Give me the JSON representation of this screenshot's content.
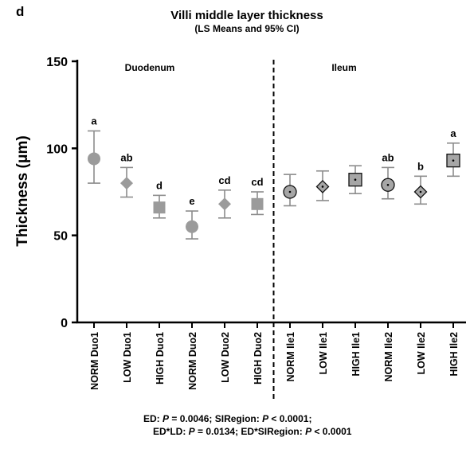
{
  "chart_data": {
    "type": "scatter",
    "panel_label": "d",
    "title": "Villi middle layer thickness",
    "subtitle": "(LS Means and 95% CI)",
    "ylabel": "Thickness (μm)",
    "ylim": [
      0,
      150
    ],
    "yticks": [
      0,
      50,
      100,
      150
    ],
    "regions": [
      {
        "name": "Duodenum"
      },
      {
        "name": "Ileum"
      }
    ],
    "categories": [
      "NORM Duo1",
      "LOW Duo1",
      "HIGH Duo1",
      "NORM Duo2",
      "LOW Duo2",
      "HIGH Duo2",
      "NORM Ile1",
      "LOW Ile1",
      "HIGH Ile1",
      "NORM Ile2",
      "LOW Ile2",
      "HIGH Ile2"
    ],
    "points": [
      {
        "category": "NORM Duo1",
        "mean": 94,
        "ci_low": 80,
        "ci_high": 110,
        "letter": "a",
        "marker": "circle",
        "region": "duodenum"
      },
      {
        "category": "LOW Duo1",
        "mean": 80,
        "ci_low": 72,
        "ci_high": 89,
        "letter": "ab",
        "marker": "diamond",
        "region": "duodenum"
      },
      {
        "category": "HIGH Duo1",
        "mean": 66,
        "ci_low": 60,
        "ci_high": 73,
        "letter": "d",
        "marker": "square",
        "region": "duodenum"
      },
      {
        "category": "NORM Duo2",
        "mean": 55,
        "ci_low": 48,
        "ci_high": 64,
        "letter": "e",
        "marker": "circle",
        "region": "duodenum"
      },
      {
        "category": "LOW Duo2",
        "mean": 68,
        "ci_low": 60,
        "ci_high": 76,
        "letter": "cd",
        "marker": "diamond",
        "region": "duodenum"
      },
      {
        "category": "HIGH Duo2",
        "mean": 68,
        "ci_low": 62,
        "ci_high": 75,
        "letter": "cd",
        "marker": "square",
        "region": "duodenum"
      },
      {
        "category": "NORM Ile1",
        "mean": 75,
        "ci_low": 67,
        "ci_high": 85,
        "letter": "",
        "marker": "circle",
        "region": "ileum"
      },
      {
        "category": "LOW Ile1",
        "mean": 78,
        "ci_low": 70,
        "ci_high": 87,
        "letter": "",
        "marker": "diamond",
        "region": "ileum"
      },
      {
        "category": "HIGH Ile1",
        "mean": 82,
        "ci_low": 74,
        "ci_high": 90,
        "letter": "",
        "marker": "square",
        "region": "ileum"
      },
      {
        "category": "NORM Ile2",
        "mean": 79,
        "ci_low": 71,
        "ci_high": 89,
        "letter": "ab",
        "marker": "circle",
        "region": "ileum"
      },
      {
        "category": "LOW Ile2",
        "mean": 75,
        "ci_low": 68,
        "ci_high": 84,
        "letter": "b",
        "marker": "diamond",
        "region": "ileum"
      },
      {
        "category": "HIGH Ile2",
        "mean": 93,
        "ci_low": 84,
        "ci_high": 103,
        "letter": "a",
        "marker": "square",
        "region": "ileum"
      }
    ],
    "stats_text": {
      "line1_p1_label": "ED: ",
      "line1_p1_p": "P",
      "line1_p1_value": " = 0.0046; SIRegion: ",
      "line1_p2_p": "P",
      "line1_p2_value": " <  0.0001;",
      "line2_p1_label": "ED*LD: ",
      "line2_p1_p": "P",
      "line2_p1_value": " =  0.0134; ED*SIRegion: ",
      "line2_p2_p": "P",
      "line2_p2_value": " <  0.0001"
    },
    "colors": {
      "duodenum_marker": "#9b9b9b",
      "ileum_marker": "#a6a6a6",
      "errorbar": "#8c8c8c",
      "axis": "#000000"
    }
  }
}
